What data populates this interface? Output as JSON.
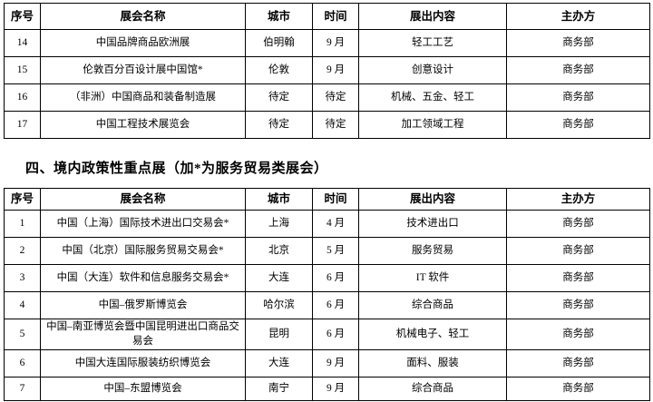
{
  "section_title": "四、境内政策性重点展（加*为服务贸易类展会）",
  "overseas_table": {
    "headers": [
      "序号",
      "展会名称",
      "城市",
      "时间",
      "展出内容",
      "主办方"
    ],
    "rows": [
      [
        "14",
        "中国品牌商品欧洲展",
        "伯明翰",
        "9 月",
        "轻工工艺",
        "商务部"
      ],
      [
        "15",
        "伦敦百分百设计展中国馆*",
        "伦敦",
        "9 月",
        "创意设计",
        "商务部"
      ],
      [
        "16",
        "（非洲）中国商品和装备制造展",
        "待定",
        "待定",
        "机械、五金、轻工",
        "商务部"
      ],
      [
        "17",
        "中国工程技术展览会",
        "待定",
        "待定",
        "加工领域工程",
        "商务部"
      ]
    ]
  },
  "domestic_table": {
    "headers": [
      "序号",
      "展会名称",
      "城市",
      "时间",
      "展出内容",
      "主办方"
    ],
    "rows": [
      [
        "1",
        "中国（上海）国际技术进出口交易会*",
        "上海",
        "4 月",
        "技术进出口",
        "商务部"
      ],
      [
        "2",
        "中国（北京）国际服务贸易交易会*",
        "北京",
        "5 月",
        "服务贸易",
        "商务部"
      ],
      [
        "3",
        "中国（大连）软件和信息服务交易会*",
        "大连",
        "6 月",
        "IT 软件",
        "商务部"
      ],
      [
        "4",
        "中国–俄罗斯博览会",
        "哈尔滨",
        "6 月",
        "综合商品",
        "商务部"
      ],
      [
        "5",
        "中国–南亚博览会暨中国昆明进出口商品交易会",
        "昆明",
        "6 月",
        "机械电子、轻工",
        "商务部"
      ],
      [
        "6",
        "中国大连国际服装纺织博览会",
        "大连",
        "9 月",
        "面料、服装",
        "商务部"
      ],
      [
        "7",
        "中国–东盟博览会",
        "南宁",
        "9 月",
        "综合商品",
        "商务部"
      ]
    ]
  }
}
